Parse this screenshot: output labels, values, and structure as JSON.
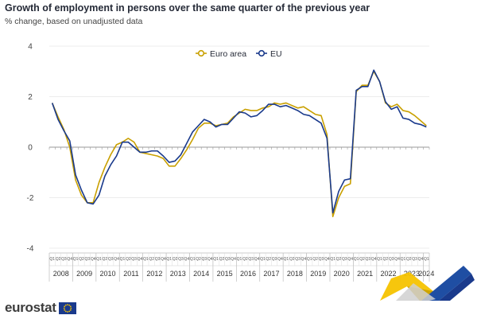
{
  "title": "Growth of employment in persons over the same quarter of the previous year",
  "subtitle": "% change, based on unadjusted data",
  "logo_text": "eurostat",
  "chart_data": {
    "type": "line",
    "title": "Growth of employment in persons over the same quarter of the previous year",
    "subtitle": "% change, based on unadjusted data",
    "xlabel": "",
    "ylabel": "",
    "ylim": [
      -4,
      4
    ],
    "yticks": [
      4,
      2,
      0,
      -2,
      -4
    ],
    "grid": true,
    "legend_position": "top-center",
    "quarter_labels": [
      "Q1",
      "Q2",
      "Q3",
      "Q4"
    ],
    "years": [
      "2008",
      "2009",
      "2010",
      "2011",
      "2012",
      "2013",
      "2014",
      "2015",
      "2016",
      "2017",
      "2018",
      "2019",
      "2020",
      "2021",
      "2022",
      "2023",
      "2024"
    ],
    "series": [
      {
        "name": "Euro area",
        "color": "#c9a000",
        "values": [
          1.75,
          1.2,
          0.7,
          0.0,
          -1.3,
          -1.9,
          -2.2,
          -2.2,
          -1.4,
          -0.8,
          -0.3,
          0.1,
          0.2,
          0.35,
          0.2,
          -0.2,
          -0.25,
          -0.3,
          -0.35,
          -0.45,
          -0.75,
          -0.75,
          -0.45,
          -0.1,
          0.3,
          0.75,
          0.95,
          0.95,
          0.85,
          0.9,
          0.95,
          1.2,
          1.35,
          1.5,
          1.45,
          1.45,
          1.55,
          1.6,
          1.75,
          1.7,
          1.75,
          1.65,
          1.55,
          1.6,
          1.45,
          1.3,
          1.25,
          0.5,
          -2.75,
          -2.0,
          -1.55,
          -1.45,
          2.2,
          2.45,
          2.45,
          3.0,
          2.6,
          1.75,
          1.6,
          1.7,
          1.45,
          1.4,
          1.25,
          1.05,
          0.85
        ]
      },
      {
        "name": "EU",
        "color": "#1a3a8c",
        "values": [
          1.75,
          1.1,
          0.65,
          0.25,
          -1.1,
          -1.7,
          -2.2,
          -2.25,
          -1.9,
          -1.15,
          -0.7,
          -0.35,
          0.2,
          0.2,
          0.0,
          -0.2,
          -0.2,
          -0.15,
          -0.15,
          -0.35,
          -0.6,
          -0.55,
          -0.3,
          0.15,
          0.6,
          0.85,
          1.1,
          1.0,
          0.8,
          0.9,
          0.9,
          1.15,
          1.4,
          1.35,
          1.2,
          1.25,
          1.45,
          1.7,
          1.7,
          1.6,
          1.65,
          1.55,
          1.45,
          1.3,
          1.25,
          1.1,
          0.95,
          0.35,
          -2.6,
          -1.75,
          -1.3,
          -1.25,
          2.25,
          2.4,
          2.4,
          3.05,
          2.6,
          1.8,
          1.5,
          1.6,
          1.15,
          1.1,
          0.95,
          0.9,
          0.8
        ]
      }
    ]
  }
}
